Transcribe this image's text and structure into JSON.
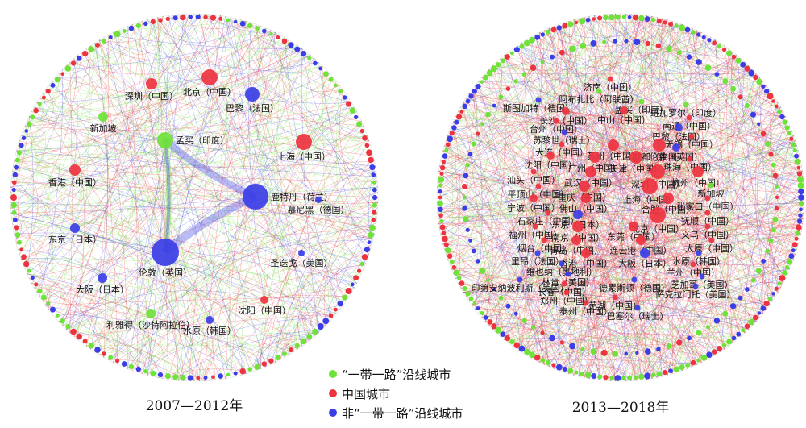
{
  "colors": {
    "belt_road": "#6fe23a",
    "china": "#ee3340",
    "non_belt_road": "#3b3ee6"
  },
  "legend": [
    {
      "key": "belt_road",
      "label": "“一带一路”沿线城市",
      "color": "#6fe23a"
    },
    {
      "key": "china",
      "label": "中国城市",
      "color": "#ee3340"
    },
    {
      "key": "non_belt_road",
      "label": "非“一带一路”沿线城市",
      "color": "#3b3ee6"
    }
  ],
  "panels": [
    {
      "period": "2007—2012年",
      "labeled_nodes": [
        {
          "label": "北京（中国）",
          "type": "china"
        },
        {
          "label": "深圳（中国）",
          "type": "china"
        },
        {
          "label": "巴黎（法国）",
          "type": "non_belt_road"
        },
        {
          "label": "新加坡",
          "type": "belt_road"
        },
        {
          "label": "孟买（印度）",
          "type": "belt_road"
        },
        {
          "label": "上海（中国）",
          "type": "china"
        },
        {
          "label": "香港（中国）",
          "type": "china"
        },
        {
          "label": "鹿特丹（荷兰）",
          "type": "non_belt_road"
        },
        {
          "label": "慕尼黑（德国）",
          "type": "non_belt_road"
        },
        {
          "label": "东京（日本）",
          "type": "non_belt_road"
        },
        {
          "label": "伦敦（英国）",
          "type": "non_belt_road"
        },
        {
          "label": "圣迭戈（美国）",
          "type": "non_belt_road"
        },
        {
          "label": "大阪（日本）",
          "type": "non_belt_road"
        },
        {
          "label": "沈阳（中国）",
          "type": "china"
        },
        {
          "label": "利雅得（沙特阿拉伯）",
          "type": "belt_road"
        },
        {
          "label": "水原（韩国）",
          "type": "non_belt_road"
        }
      ]
    },
    {
      "period": "2013—2018年",
      "labeled_nodes": [
        {
          "label": "济南（中国）",
          "type": "china"
        },
        {
          "label": "阿布扎比（阿联酋）",
          "type": "belt_road"
        },
        {
          "label": "斯图加特（德国）",
          "type": "non_belt_road"
        },
        {
          "label": "孟买（印度）",
          "type": "belt_road"
        },
        {
          "label": "班加罗尔（印度）",
          "type": "belt_road"
        },
        {
          "label": "长沙（中国）",
          "type": "china"
        },
        {
          "label": "中山（中国）",
          "type": "china"
        },
        {
          "label": "南通（中国）",
          "type": "china"
        },
        {
          "label": "台州（中国）",
          "type": "china"
        },
        {
          "label": "巴黎（法国）",
          "type": "non_belt_road"
        },
        {
          "label": "苏黎世（瑞士）",
          "type": "non_belt_road"
        },
        {
          "label": "无锡（中国）",
          "type": "china"
        },
        {
          "label": "大连（中国）",
          "type": "china"
        },
        {
          "label": "苏州（中国）",
          "type": "china"
        },
        {
          "label": "成都（中国）",
          "type": "china"
        },
        {
          "label": "伦敦（英国）",
          "type": "non_belt_road"
        },
        {
          "label": "沈阳（中国）",
          "type": "china"
        },
        {
          "label": "广州（中国）",
          "type": "china"
        },
        {
          "label": "天津（中国）",
          "type": "china"
        },
        {
          "label": "珠海（中国）",
          "type": "china"
        },
        {
          "label": "汕头（中国）",
          "type": "china"
        },
        {
          "label": "武汉（中国）",
          "type": "china"
        },
        {
          "label": "深圳（中国）",
          "type": "china"
        },
        {
          "label": "杭州（中国）",
          "type": "china"
        },
        {
          "label": "新加坡",
          "type": "belt_road"
        },
        {
          "label": "平顶山（中国）",
          "type": "china"
        },
        {
          "label": "重庆（中国）",
          "type": "china"
        },
        {
          "label": "上海（中国）",
          "type": "china"
        },
        {
          "label": "宁波（中国）",
          "type": "china"
        },
        {
          "label": "佛山（中国）",
          "type": "china"
        },
        {
          "label": "合肥（中国）",
          "type": "china"
        },
        {
          "label": "张家口（中国）",
          "type": "china"
        },
        {
          "label": "石家庄（中国）",
          "type": "china"
        },
        {
          "label": "东京（日本）",
          "type": "non_belt_road"
        },
        {
          "label": "北京（中国）",
          "type": "china"
        },
        {
          "label": "抚顺（中国）",
          "type": "china"
        },
        {
          "label": "福州（中国）",
          "type": "china"
        },
        {
          "label": "南京（中国）",
          "type": "china"
        },
        {
          "label": "东莞（中国）",
          "type": "china"
        },
        {
          "label": "义乌（中国）",
          "type": "china"
        },
        {
          "label": "烟台（中国）",
          "type": "china"
        },
        {
          "label": "青岛（中国）",
          "type": "china"
        },
        {
          "label": "连云港（中国）",
          "type": "china"
        },
        {
          "label": "太原（中国）",
          "type": "china"
        },
        {
          "label": "里昂（法国）",
          "type": "non_belt_road"
        },
        {
          "label": "香港（中国）",
          "type": "china"
        },
        {
          "label": "大阪（日本）",
          "type": "non_belt_road"
        },
        {
          "label": "水原（韩国）",
          "type": "non_belt_road"
        },
        {
          "label": "维也纳（奥地利）",
          "type": "non_belt_road"
        },
        {
          "label": "兰州（中国）",
          "type": "china"
        },
        {
          "label": "林肯（美国）",
          "type": "non_belt_road"
        },
        {
          "label": "芝加哥（美国）",
          "type": "non_belt_road"
        },
        {
          "label": "印第安纳波利斯（美国）",
          "type": "non_belt_road"
        },
        {
          "label": "德累斯顿（德国）",
          "type": "non_belt_road"
        },
        {
          "label": "萨克拉门托（美国）",
          "type": "non_belt_road"
        },
        {
          "label": "长春（中国）",
          "type": "china"
        },
        {
          "label": "郑州（中国）",
          "type": "china"
        },
        {
          "label": "芜湖（中国）",
          "type": "china"
        },
        {
          "label": "泰州（中国）",
          "type": "china"
        },
        {
          "label": "巴塞尔（瑞士）",
          "type": "non_belt_road"
        }
      ]
    }
  ]
}
